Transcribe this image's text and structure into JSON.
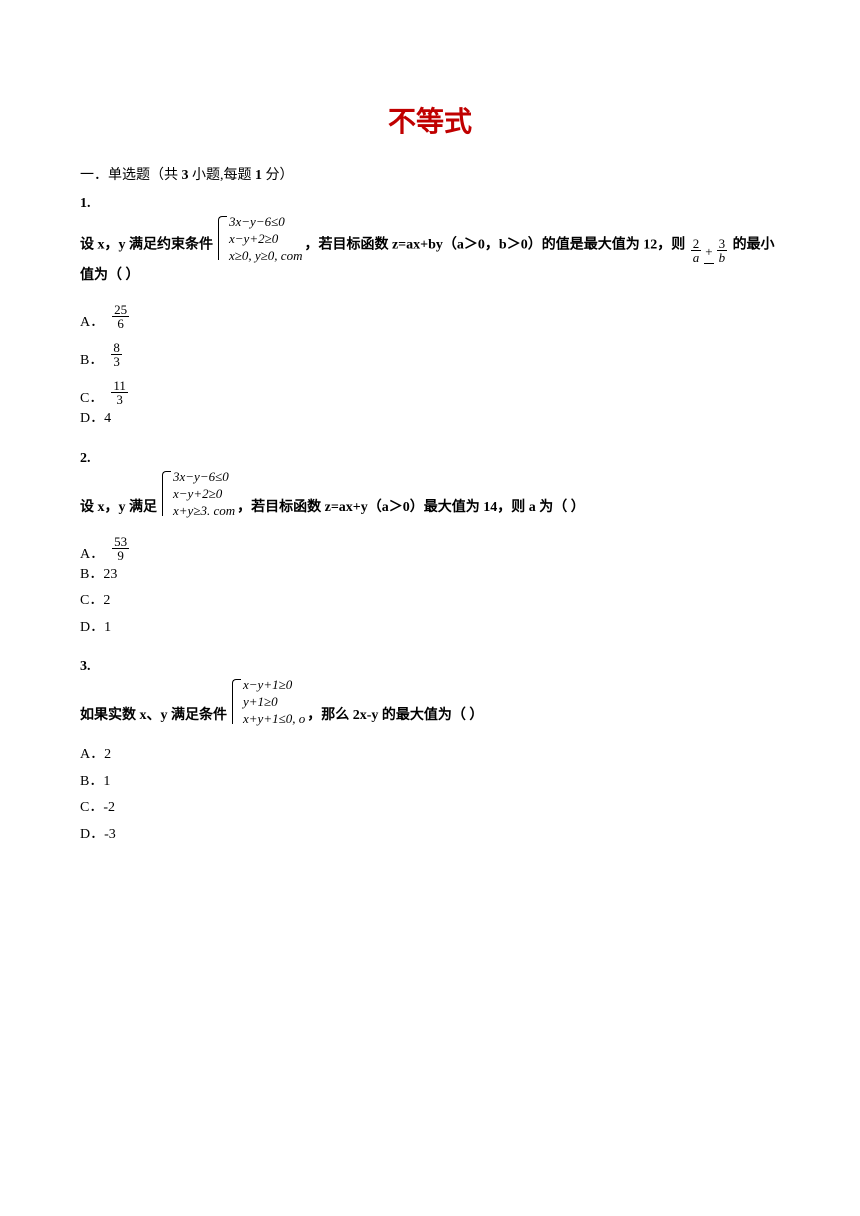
{
  "title": "不等式",
  "section_header_prefix": "一．单选题（共 ",
  "section_header_count": "3",
  "section_header_mid": " 小题,每题 ",
  "section_header_points": "1",
  "section_header_suffix": " 分）",
  "questions": [
    {
      "num": "1.",
      "constraints": [
        "3x−y−6≤0",
        "x−y+2≥0",
        "x≥0, y≥0, com"
      ],
      "text_pre": "设 ",
      "text_mid1": "满足约束条件",
      "text_mid2": "，若目标函数 ",
      "objective": "z=ax+by（a＞0，b＞0）",
      "text_mid3": "的值是最大值为 ",
      "value": "12",
      "text_mid4": "，则",
      "frac_expr": {
        "n1": "2",
        "d1": "a",
        "n2": "3",
        "d2": "b"
      },
      "text_end": "的最小值为（ ）",
      "vars": "x，y ",
      "choices": [
        {
          "letter": "A．",
          "is_frac": true,
          "num": "25",
          "den": "6"
        },
        {
          "letter": "B．",
          "is_frac": true,
          "num": "8",
          "den": "3"
        },
        {
          "letter": "C．",
          "is_frac": true,
          "num": "11",
          "den": "3"
        },
        {
          "letter": "D．",
          "is_frac": false,
          "text": "4"
        }
      ]
    },
    {
      "num": "2.",
      "constraints": [
        "3x−y−6≤0",
        "x−y+2≥0",
        "x+y≥3. com"
      ],
      "text_pre": "设 ",
      "text_mid1": "满足",
      "text_mid2": "，若目标函数 ",
      "objective": "z=ax+y（a＞0）",
      "text_mid3": "最大值为 ",
      "value": "14",
      "text_mid4": "，则 ",
      "text_end": " 为（ ）",
      "vars": "x，y ",
      "avar": "a",
      "choices": [
        {
          "letter": "A．",
          "is_frac": true,
          "num": "53",
          "den": "9"
        },
        {
          "letter": "B．",
          "is_frac": false,
          "text": "23"
        },
        {
          "letter": "C．",
          "is_frac": false,
          "text": "2"
        },
        {
          "letter": "D．",
          "is_frac": false,
          "text": "1"
        }
      ]
    },
    {
      "num": "3.",
      "constraints": [
        "x−y+1≥0",
        "y+1≥0",
        "x+y+1≤0, o"
      ],
      "text_pre": "如果实数 ",
      "text_mid1": "满足条件",
      "text_mid2": "，那么 ",
      "objective": "2x-y",
      "text_end": " 的最大值为（ ）",
      "vars": "x、y ",
      "choices": [
        {
          "letter": "A．",
          "is_frac": false,
          "text": "2"
        },
        {
          "letter": "B．",
          "is_frac": false,
          "text": "1"
        },
        {
          "letter": "C．",
          "is_frac": false,
          "text": "-2"
        },
        {
          "letter": "D．",
          "is_frac": false,
          "text": "-3"
        }
      ]
    }
  ]
}
